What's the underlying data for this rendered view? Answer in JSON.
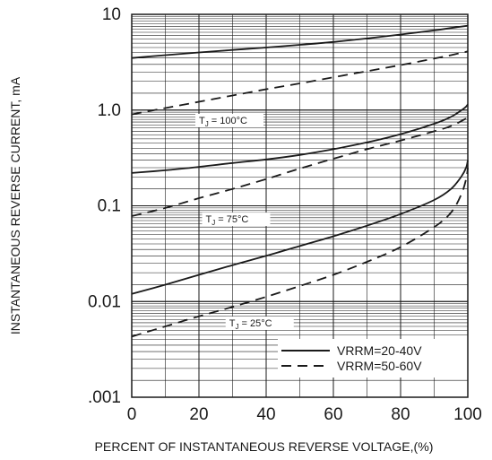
{
  "chart_data": {
    "type": "line",
    "xlabel": "PERCENT OF INSTANTANEOUS REVERSE VOLTAGE,(%)",
    "ylabel": "INSTANTANEOUS REVERSE CURRENT, mA",
    "xlim": [
      0,
      100
    ],
    "ylim": [
      0.001,
      10
    ],
    "yscale": "log",
    "grid": true,
    "x_ticks": [
      "0",
      "20",
      "40",
      "60",
      "80",
      "100"
    ],
    "y_ticks": [
      {
        "value": 10,
        "label": "10"
      },
      {
        "value": 1,
        "label": "1.0"
      },
      {
        "value": 0.1,
        "label": "0.1"
      },
      {
        "value": 0.01,
        "label": "0.01"
      },
      {
        "value": 0.001,
        "label": ".001"
      }
    ],
    "legend": {
      "placement": "bottom-right",
      "entries": [
        {
          "label": "VRRM=20-40V",
          "style": "solid"
        },
        {
          "label": "VRRM=50-60V",
          "style": "dashed"
        }
      ]
    },
    "annotations": [
      {
        "text": "TJ = 100°C",
        "x": 20,
        "y": 0.72
      },
      {
        "text": "TJ = 75°C",
        "x": 22,
        "y": 0.067
      },
      {
        "text": "TJ = 25°C",
        "x": 29,
        "y": 0.0055
      }
    ],
    "series": [
      {
        "style": "solid",
        "temp": "100",
        "x": [
          0,
          10,
          20,
          30,
          40,
          50,
          60,
          70,
          80,
          90,
          95,
          100
        ],
        "y": [
          3.5,
          3.75,
          4.0,
          4.25,
          4.5,
          4.8,
          5.15,
          5.6,
          6.15,
          6.8,
          7.2,
          7.6
        ]
      },
      {
        "style": "dashed",
        "temp": "100",
        "x": [
          0,
          10,
          20,
          30,
          40,
          50,
          60,
          70,
          80,
          90,
          95,
          100
        ],
        "y": [
          0.9,
          1.05,
          1.22,
          1.42,
          1.65,
          1.9,
          2.2,
          2.55,
          2.95,
          3.45,
          3.75,
          4.1
        ]
      },
      {
        "style": "solid",
        "temp": "75",
        "x": [
          0,
          10,
          20,
          30,
          40,
          50,
          60,
          70,
          80,
          90,
          95,
          99,
          100
        ],
        "y": [
          0.22,
          0.235,
          0.255,
          0.28,
          0.305,
          0.34,
          0.39,
          0.46,
          0.56,
          0.72,
          0.85,
          1.05,
          1.15
        ]
      },
      {
        "style": "dashed",
        "temp": "75",
        "x": [
          0,
          10,
          20,
          30,
          40,
          50,
          60,
          70,
          80,
          90,
          95,
          99,
          100
        ],
        "y": [
          0.078,
          0.095,
          0.12,
          0.15,
          0.19,
          0.245,
          0.31,
          0.39,
          0.48,
          0.6,
          0.68,
          0.8,
          0.85
        ]
      },
      {
        "style": "solid",
        "temp": "25",
        "x": [
          0,
          10,
          20,
          30,
          40,
          50,
          60,
          70,
          80,
          90,
          95,
          98,
          99.5,
          100
        ],
        "y": [
          0.012,
          0.015,
          0.019,
          0.024,
          0.03,
          0.038,
          0.048,
          0.062,
          0.082,
          0.115,
          0.15,
          0.2,
          0.25,
          0.3
        ]
      },
      {
        "style": "dashed",
        "temp": "25",
        "x": [
          0,
          10,
          20,
          30,
          40,
          50,
          60,
          70,
          80,
          90,
          95,
          98,
          99.5,
          100
        ],
        "y": [
          0.0043,
          0.0055,
          0.007,
          0.0088,
          0.0112,
          0.0145,
          0.019,
          0.026,
          0.037,
          0.06,
          0.085,
          0.13,
          0.19,
          0.25
        ]
      }
    ],
    "line_color": "#1a1a1a"
  }
}
